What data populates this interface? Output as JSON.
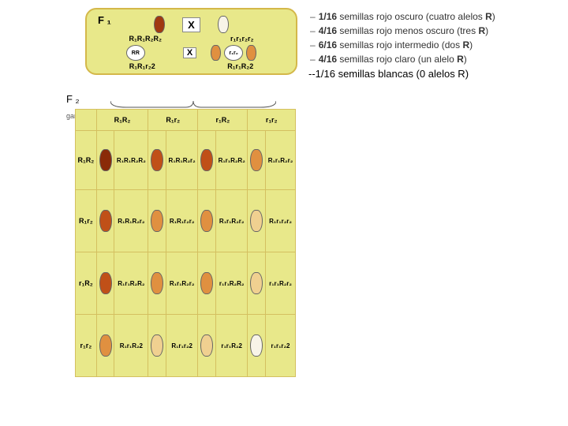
{
  "f1": {
    "label": "F ₁",
    "cross_symbol": "X",
    "parent_left_geno": "R₁R₁R₂R₂",
    "parent_right_geno": "r₁r₁r₂r₂",
    "gamete_left": "RR",
    "gamete_right": "r₁r₂",
    "offspring_left_geno": "R₁R₁r₂2",
    "offspring_right_geno": "R₁r₁R₂2",
    "seed_colors": {
      "dark_red": "#a03810",
      "white": "#f8f4e8",
      "mid": "#e09040",
      "light": "#f0d090"
    }
  },
  "ratio_lines": [
    {
      "prefix": "–",
      "frac": "1/16",
      "text": "semillas rojo oscuro (cuatro alelos ",
      "suffix": "R",
      "close": ")"
    },
    {
      "prefix": "–",
      "frac": "4/16",
      "text": "semillas rojo menos oscuro (tres ",
      "suffix": "R",
      "close": ")"
    },
    {
      "prefix": "–",
      "frac": "6/16",
      "text": "semillas rojo intermedio (dos ",
      "suffix": "R",
      "close": ")"
    },
    {
      "prefix": "–",
      "frac": "4/16",
      "text": "semillas rojo claro (un alelo ",
      "suffix": "R",
      "close": ")"
    }
  ],
  "added_line": "--1/16 semillas blancas (0 alelos R)",
  "f2": {
    "label": "F ₂",
    "gametos_label": "gametos",
    "col_headers": [
      "R₁R₂",
      "R₁r₂",
      "r₁R₂",
      "r₁r₂"
    ],
    "row_headers": [
      "R₁R₂",
      "R₁r₂",
      "r₁R₂",
      "r₁r₂"
    ],
    "seed_grid_colors": [
      [
        "#8a2a08",
        "#c05018",
        "#c05018",
        "#e09040"
      ],
      [
        "#c05018",
        "#e09040",
        "#e09040",
        "#f0d090"
      ],
      [
        "#c05018",
        "#e09040",
        "#e09040",
        "#f0d090"
      ],
      [
        "#e09040",
        "#f0d090",
        "#f0d090",
        "#f8f4e8"
      ]
    ],
    "geno_grid": [
      [
        "R₁R₁R₂R₂",
        "R₁R₁R₂r₂",
        "R₁r₁R₂R₂",
        "R₁r₁R₂r₂"
      ],
      [
        "R₁R₁R₂r₂",
        "R₁R₁r₂r₂",
        "R₁r₁R₂r₂",
        "R₁r₁r₂r₂"
      ],
      [
        "R₁r₁R₂R₂",
        "R₁r₁R₂r₂",
        "r₁r₁R₂R₂",
        "r₁r₁R₂r₂"
      ],
      [
        "R₁r₁R₂2",
        "R₁r₁r₂2",
        "r₁r₁R₂2",
        "r₁r₁r₂2"
      ]
    ]
  },
  "styling": {
    "panel_bg": "#e8e88a",
    "panel_border": "#d4b84a",
    "grid_border": "#d4c060",
    "page_bg": "#ffffff",
    "seed_small": {
      "w": 12,
      "h": 20
    },
    "seed_grid": {
      "w": 14,
      "h": 26
    }
  }
}
